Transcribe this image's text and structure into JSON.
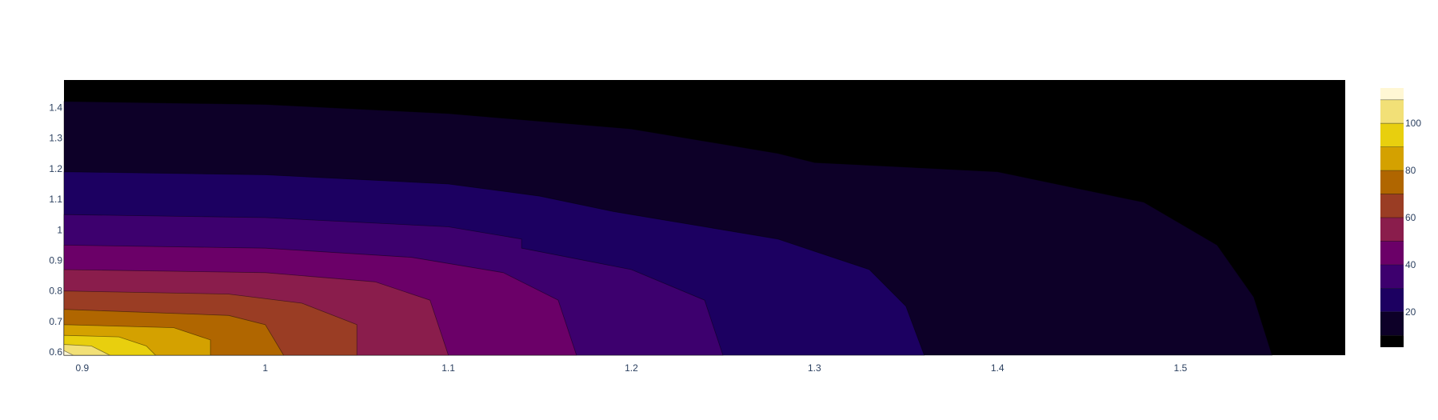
{
  "chart_data": {
    "type": "contour",
    "x_ticks": [
      "0.9",
      "1",
      "1.1",
      "1.2",
      "1.3",
      "1.4",
      "1.5"
    ],
    "y_ticks": [
      "0.6",
      "0.7",
      "0.8",
      "0.9",
      "1",
      "1.1",
      "1.2",
      "1.3",
      "1.4"
    ],
    "xlim": [
      0.89,
      1.59
    ],
    "ylim": [
      0.59,
      1.49
    ],
    "colorbar": {
      "ticks": [
        "20",
        "40",
        "60",
        "80",
        "100"
      ],
      "tick_values": [
        20,
        40,
        60,
        80,
        100
      ],
      "range": [
        5,
        115
      ]
    },
    "levels": [
      10,
      20,
      30,
      40,
      50,
      60,
      70,
      80,
      90,
      100,
      110
    ],
    "colorscale": [
      "#000000",
      "#0d0028",
      "#1c0061",
      "#3d006e",
      "#6b0068",
      "#8a1d4c",
      "#9a3d24",
      "#b06600",
      "#d4a100",
      "#e8cf0e",
      "#f2e077",
      "#fff7d4"
    ],
    "contour_boundaries": [
      {
        "level": 10,
        "points": [
          [
            0.89,
            1.42
          ],
          [
            1.0,
            1.41
          ],
          [
            1.1,
            1.38
          ],
          [
            1.2,
            1.33
          ],
          [
            1.28,
            1.25
          ],
          [
            1.3,
            1.22
          ],
          [
            1.4,
            1.19
          ],
          [
            1.48,
            1.09
          ],
          [
            1.52,
            0.95
          ],
          [
            1.54,
            0.78
          ],
          [
            1.55,
            0.59
          ]
        ]
      },
      {
        "level": 20,
        "points": [
          [
            0.89,
            1.19
          ],
          [
            1.0,
            1.18
          ],
          [
            1.1,
            1.15
          ],
          [
            1.15,
            1.11
          ],
          [
            1.19,
            1.06
          ],
          [
            1.2,
            1.05
          ],
          [
            1.28,
            0.97
          ],
          [
            1.33,
            0.87
          ],
          [
            1.35,
            0.75
          ],
          [
            1.36,
            0.59
          ]
        ]
      },
      {
        "level": 30,
        "points": [
          [
            0.89,
            1.05
          ],
          [
            1.0,
            1.04
          ],
          [
            1.1,
            1.01
          ],
          [
            1.14,
            0.97
          ],
          [
            1.14,
            0.94
          ],
          [
            1.2,
            0.87
          ],
          [
            1.24,
            0.77
          ],
          [
            1.25,
            0.59
          ]
        ]
      },
      {
        "level": 40,
        "points": [
          [
            0.89,
            0.95
          ],
          [
            1.0,
            0.94
          ],
          [
            1.08,
            0.91
          ],
          [
            1.13,
            0.86
          ],
          [
            1.16,
            0.77
          ],
          [
            1.17,
            0.59
          ]
        ]
      },
      {
        "level": 50,
        "points": [
          [
            0.89,
            0.87
          ],
          [
            1.0,
            0.86
          ],
          [
            1.06,
            0.83
          ],
          [
            1.09,
            0.77
          ],
          [
            1.1,
            0.59
          ]
        ]
      },
      {
        "level": 60,
        "points": [
          [
            0.89,
            0.8
          ],
          [
            0.98,
            0.79
          ],
          [
            1.02,
            0.76
          ],
          [
            1.05,
            0.69
          ],
          [
            1.05,
            0.59
          ]
        ]
      },
      {
        "level": 70,
        "points": [
          [
            0.89,
            0.74
          ],
          [
            0.98,
            0.72
          ],
          [
            1.0,
            0.69
          ],
          [
            1.01,
            0.59
          ]
        ]
      },
      {
        "level": 80,
        "points": [
          [
            0.89,
            0.69
          ],
          [
            0.95,
            0.68
          ],
          [
            0.97,
            0.64
          ],
          [
            0.97,
            0.59
          ]
        ]
      },
      {
        "level": 90,
        "points": [
          [
            0.89,
            0.655
          ],
          [
            0.92,
            0.65
          ],
          [
            0.935,
            0.62
          ],
          [
            0.94,
            0.59
          ]
        ]
      },
      {
        "level": 100,
        "points": [
          [
            0.89,
            0.625
          ],
          [
            0.905,
            0.62
          ],
          [
            0.915,
            0.59
          ]
        ]
      },
      {
        "level": 110,
        "points": [
          [
            0.89,
            0.605
          ],
          [
            0.895,
            0.59
          ]
        ]
      }
    ]
  }
}
